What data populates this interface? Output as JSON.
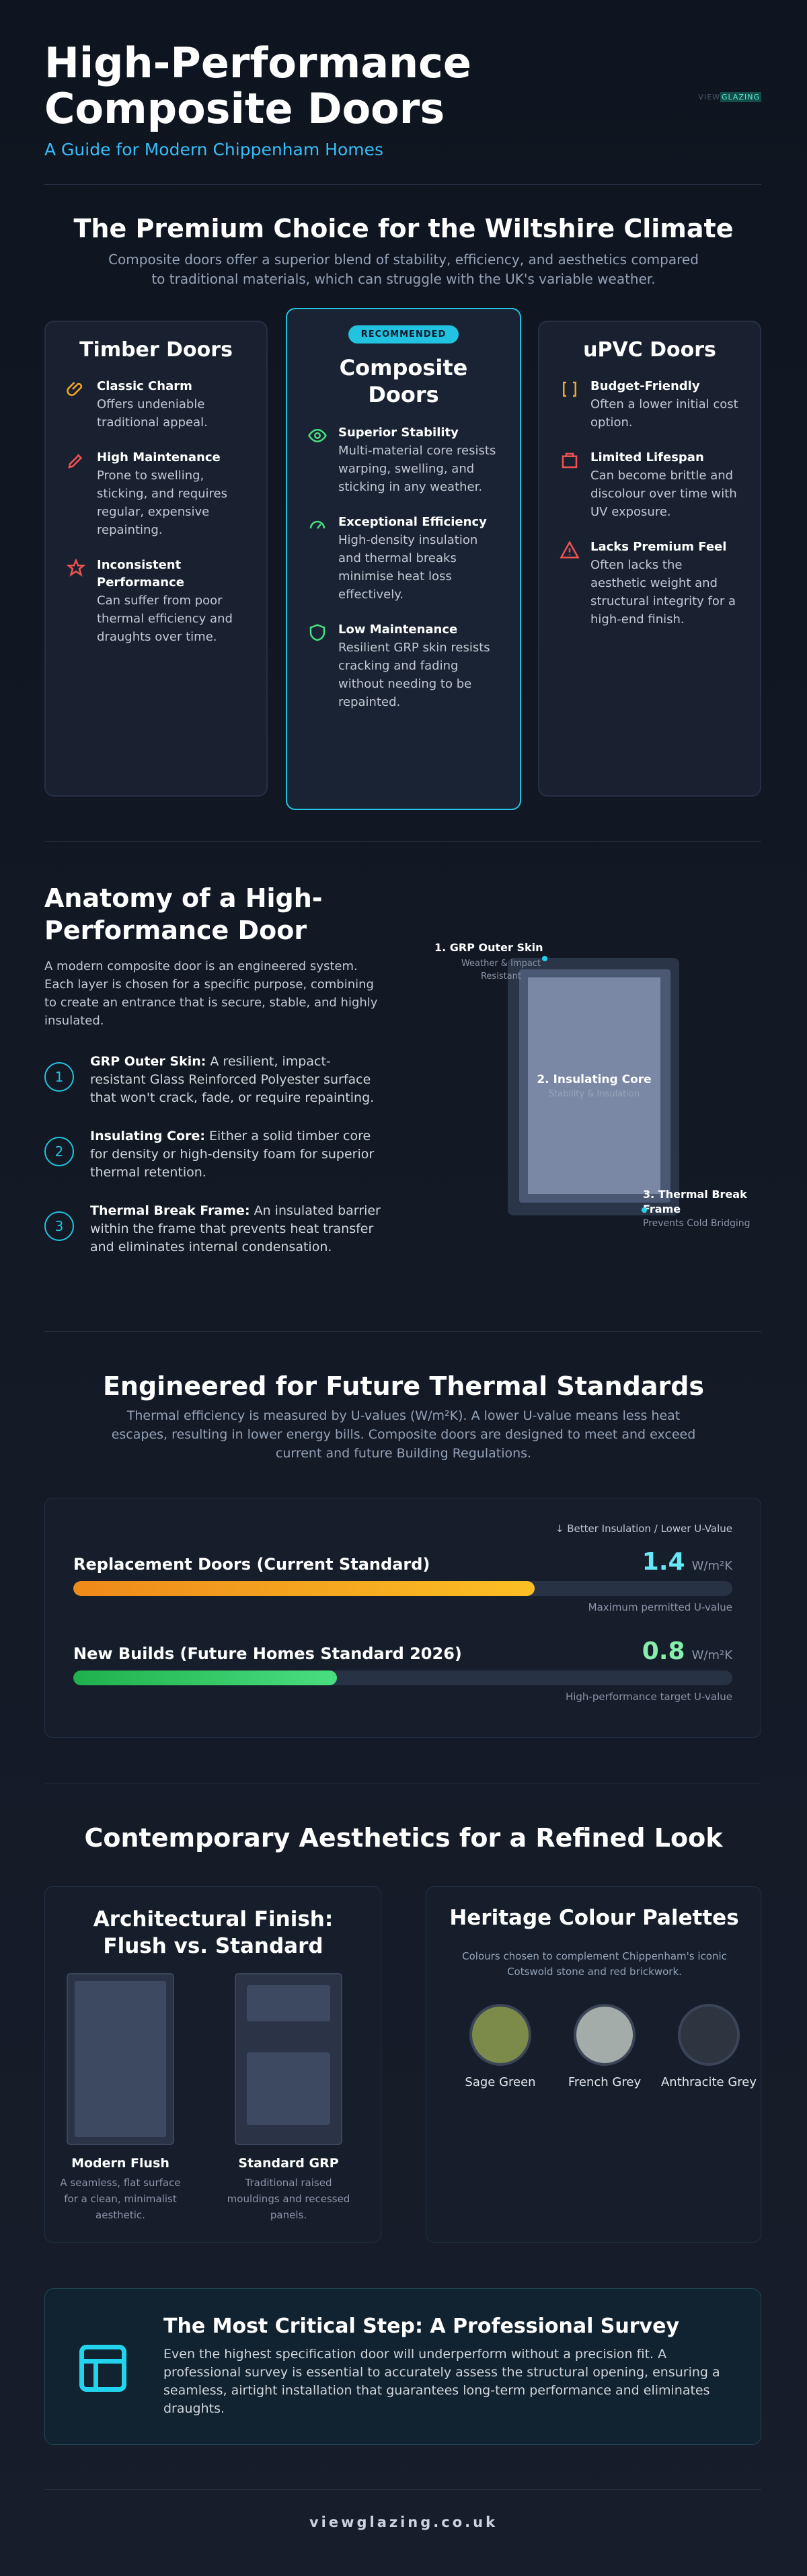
{
  "header": {
    "title": "High-Performance Composite Doors",
    "subtitle": "A Guide for Modern Chippenham Homes",
    "logo_prefix": "VIEW",
    "logo_suffix": "GLAZING"
  },
  "intro": {
    "heading": "The Premium Choice for the Wiltshire Climate",
    "text": "Composite doors offer a superior blend of stability, efficiency, and aesthetics compared to traditional materials, which can struggle with the UK's variable weather."
  },
  "cards": [
    {
      "title": "Timber Doors",
      "items": [
        {
          "title": "Classic Charm",
          "text": "Offers undeniable traditional appeal."
        },
        {
          "title": "High Maintenance",
          "text": "Prone to swelling, sticking, and requires regular, expensive repainting."
        },
        {
          "title": "Inconsistent Performance",
          "text": "Can suffer from poor thermal efficiency and draughts over time."
        }
      ]
    },
    {
      "badge": "RECOMMENDED",
      "title": "Composite Doors",
      "items": [
        {
          "title": "Superior Stability",
          "text": "Multi-material core resists warping, swelling, and sticking in any weather."
        },
        {
          "title": "Exceptional Efficiency",
          "text": "High-density insulation and thermal breaks minimise heat loss effectively."
        },
        {
          "title": "Low Maintenance",
          "text": "Resilient GRP skin resists cracking and fading without needing to be repainted."
        }
      ]
    },
    {
      "title": "uPVC Doors",
      "items": [
        {
          "title": "Budget-Friendly",
          "text": "Often a lower initial cost option."
        },
        {
          "title": "Limited Lifespan",
          "text": "Can become brittle and discolour over time with UV exposure."
        },
        {
          "title": "Lacks Premium Feel",
          "text": "Often lacks the aesthetic weight and structural integrity for a high-end finish."
        }
      ]
    }
  ],
  "anatomy": {
    "heading": "Anatomy of a High-Performance Door",
    "text": "A modern composite door is an engineered system. Each layer is chosen for a specific purpose, combining to create an entrance that is secure, stable, and highly insulated.",
    "layers": [
      {
        "number": 1,
        "title": "GRP Outer Skin:",
        "text": "A resilient, impact-resistant Glass Reinforced Polyester surface that won't crack, fade, or require repainting."
      },
      {
        "number": 2,
        "title": "Insulating Core:",
        "text": "Either a solid timber core for density or high-density foam for superior thermal retention."
      },
      {
        "number": 3,
        "title": "Thermal Break Frame:",
        "text": "An insulated barrier within the frame that prevents heat transfer and eliminates internal condensation."
      }
    ],
    "diagram": {
      "skin": "1. GRP Outer Skin",
      "skin_note": "Weather & Impact Resistant",
      "core": "2. Insulating Core",
      "core_note": "Stability & Insulation",
      "frame": "3. Thermal Break Frame",
      "frame_note": "Prevents Cold Bridging"
    }
  },
  "thermal": {
    "heading": "Engineered for Future Thermal Standards",
    "text": "Thermal efficiency is measured by U-values (W/m²K). A lower U-value means less heat escapes, resulting in lower energy bills. Composite doors are designed to meet and exceed current and future Building Regulations.",
    "legend": "Better Insulation / Lower U-Value",
    "bars": [
      {
        "label": "Replacement Doors (Current Standard)",
        "value": 1.4,
        "unit": "W/m²K",
        "note": "Maximum permitted U-value"
      },
      {
        "label": "New Builds (Future Homes Standard 2026)",
        "value": 0.8,
        "unit": "W/m²K",
        "note": "High-performance target U-value"
      }
    ]
  },
  "aesthetics": {
    "heading": "Contemporary Aesthetics for a Refined Look",
    "finish": {
      "title": "Architectural Finish: Flush vs. Standard",
      "items": [
        {
          "name": "Modern Flush",
          "text": "A seamless, flat surface for a clean, minimalist aesthetic."
        },
        {
          "name": "Standard GRP",
          "text": "Traditional raised mouldings and recessed panels."
        }
      ]
    },
    "colours": {
      "title": "Heritage Colour Palettes",
      "text": "Colours chosen to complement Chippenham's iconic Cotswold stone and red brickwork.",
      "swatches": [
        {
          "name": "Sage Green",
          "color": "#7c8b4a"
        },
        {
          "name": "French Grey",
          "color": "#a3aca8"
        },
        {
          "name": "Anthracite Grey",
          "color": "#2c3540"
        }
      ]
    }
  },
  "survey": {
    "title": "The Most Critical Step: A Professional Survey",
    "text": "Even the highest specification door will underperform without a precision fit. A professional survey is essential to accurately assess the structural opening, ensuring a seamless, airtight installation that guarantees long-term performance and eliminates draughts."
  },
  "footer": {
    "text": "viewglazing.co.uk"
  }
}
